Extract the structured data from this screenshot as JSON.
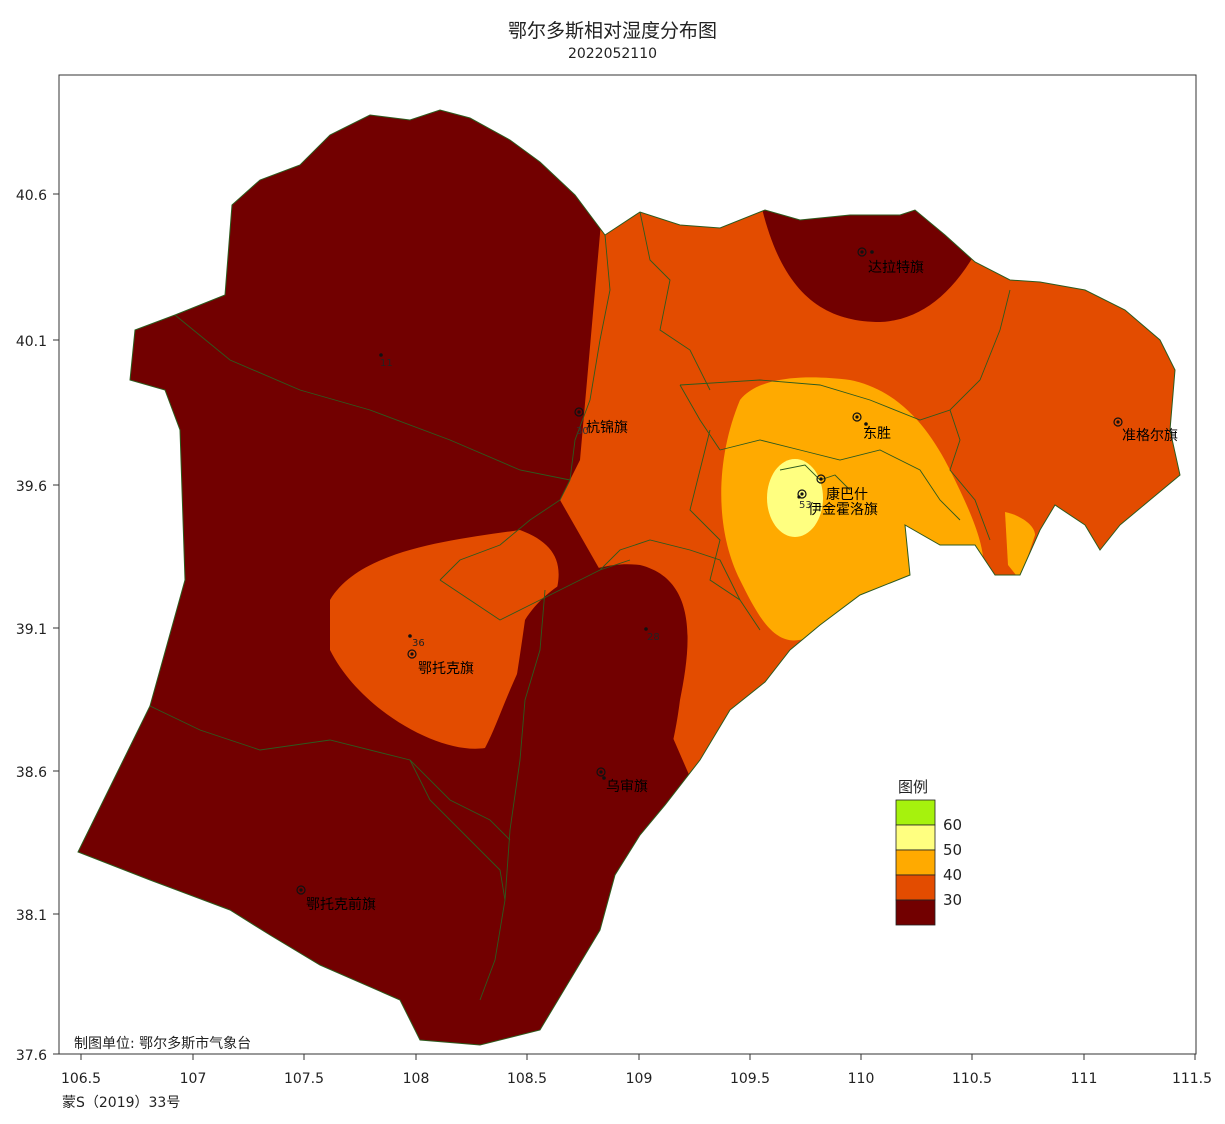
{
  "title": "鄂尔多斯相对湿度分布图",
  "subtitle": "2022052110",
  "credit": "制图单位: 鄂尔多斯市气象台",
  "license": "蒙S（2019）33号",
  "axes": {
    "x_ticks": [
      "106.5",
      "107",
      "107.5",
      "108",
      "108.5",
      "109",
      "109.5",
      "110",
      "110.5",
      "111",
      "111.5"
    ],
    "y_ticks": [
      "40.6",
      "40.1",
      "39.6",
      "39.1",
      "38.6",
      "38.1",
      "37.6"
    ]
  },
  "legend": {
    "title": "图例",
    "items": [
      {
        "label": "60",
        "color": "#a6f20d"
      },
      {
        "label": "50",
        "color": "#ffff80"
      },
      {
        "label": "40",
        "color": "#ffaa00"
      },
      {
        "label": "30",
        "color": "#e34c00"
      },
      {
        "label": "",
        "color": "#720000"
      }
    ]
  },
  "colors": {
    "band_lt30": "#720000",
    "band_30_40": "#e34c00",
    "band_40_50": "#ffaa00",
    "band_50_60": "#ffff80",
    "boundary": "#2d5a1e"
  },
  "stations": [
    {
      "name": "达拉特旗",
      "value": ""
    },
    {
      "name": "东胜",
      "value": ""
    },
    {
      "name": "准格尔旗",
      "value": ""
    },
    {
      "name": "杭锦旗",
      "value": "30"
    },
    {
      "name": "康巴什",
      "value": ""
    },
    {
      "name": "伊金霍洛旗",
      "value": "53"
    },
    {
      "name": "鄂托克旗",
      "value": "36"
    },
    {
      "name": "乌审旗",
      "value": ""
    },
    {
      "name": "鄂托克前旗",
      "value": ""
    },
    {
      "name": "",
      "value": "11"
    },
    {
      "name": "",
      "value": "28"
    }
  ]
}
